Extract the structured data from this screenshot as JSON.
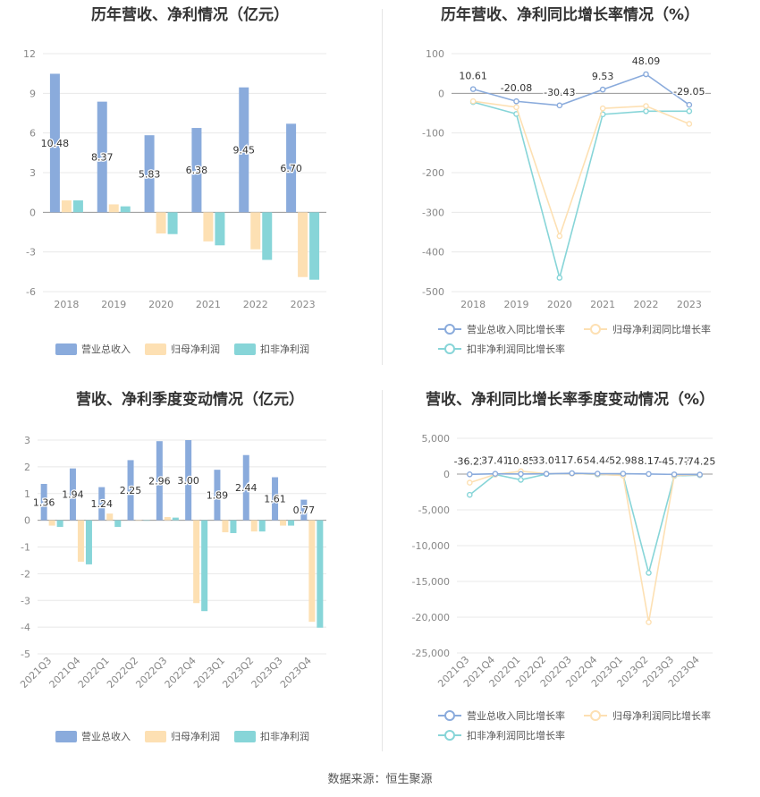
{
  "source": "数据来源：恒生聚源",
  "colors": {
    "blue": "#8aabdc",
    "orange": "#fde0b3",
    "teal": "#87d5d8",
    "grid": "#e8e8e8",
    "axis": "#999"
  },
  "chart_data": [
    {
      "type": "bar",
      "title": "历年营收、净利情况（亿元）",
      "categories": [
        "2018",
        "2019",
        "2020",
        "2021",
        "2022",
        "2023"
      ],
      "ylim": [
        -6,
        12
      ],
      "yticks": [
        12,
        9,
        6,
        3,
        0,
        -3,
        -6
      ],
      "series": [
        {
          "name": "营业总收入",
          "values": [
            10.48,
            8.37,
            5.83,
            6.38,
            9.45,
            6.7
          ],
          "labels": [
            "10.48",
            "8.37",
            "5.83",
            "6.38",
            "9.45",
            "6.70"
          ]
        },
        {
          "name": "归母净利润",
          "values": [
            0.9,
            0.6,
            -1.6,
            -2.2,
            -2.8,
            -4.9
          ]
        },
        {
          "name": "扣非净利润",
          "values": [
            0.9,
            0.45,
            -1.65,
            -2.5,
            -3.6,
            -5.1
          ]
        }
      ],
      "legend": "bottom"
    },
    {
      "type": "line",
      "title": "历年营收、净利同比增长率情况（%）",
      "categories": [
        "2018",
        "2019",
        "2020",
        "2021",
        "2022",
        "2023"
      ],
      "ylim": [
        -500,
        100
      ],
      "yticks": [
        100,
        0,
        -100,
        -200,
        -300,
        -400,
        -500
      ],
      "series": [
        {
          "name": "营业总收入同比增长率",
          "values": [
            10.61,
            -20.08,
            -30.43,
            9.53,
            48.09,
            -29.05
          ],
          "labels": [
            "10.61",
            "-20.08",
            "-30.43",
            "9.53",
            "48.09",
            "-29.05"
          ]
        },
        {
          "name": "归母净利润同比增长率",
          "values": [
            -20,
            -35,
            -360,
            -38,
            -32,
            -77
          ]
        },
        {
          "name": "扣非净利润同比增长率",
          "values": [
            -22,
            -52,
            -465,
            -53,
            -45,
            -45
          ]
        }
      ],
      "legend": "bottom"
    },
    {
      "type": "bar",
      "title": "营收、净利季度变动情况（亿元）",
      "categories": [
        "2021Q3",
        "2021Q4",
        "2022Q1",
        "2022Q2",
        "2022Q3",
        "2022Q4",
        "2023Q1",
        "2023Q2",
        "2023Q3",
        "2023Q4"
      ],
      "ylim": [
        -5,
        3
      ],
      "yticks": [
        3,
        2,
        1,
        0,
        -1,
        -2,
        -3,
        -4,
        -5
      ],
      "series": [
        {
          "name": "营业总收入",
          "values": [
            1.36,
            1.94,
            1.24,
            2.25,
            2.96,
            3.0,
            1.89,
            2.44,
            1.61,
            0.77
          ],
          "labels": [
            "1.36",
            "1.94",
            "1.24",
            "2.25",
            "2.96",
            "3.00",
            "1.89",
            "2.44",
            "1.61",
            "0.77"
          ]
        },
        {
          "name": "归母净利润",
          "values": [
            -0.2,
            -1.55,
            0.25,
            0,
            0.12,
            -3.1,
            -0.45,
            -0.42,
            -0.2,
            -3.8
          ]
        },
        {
          "name": "扣非净利润",
          "values": [
            -0.25,
            -1.65,
            -0.25,
            0,
            0.1,
            -3.4,
            -0.48,
            -0.42,
            -0.2,
            -4.02
          ]
        }
      ],
      "legend": "bottom"
    },
    {
      "type": "line",
      "title": "营收、净利同比增长率季度变动情况（%）",
      "categories": [
        "2021Q3",
        "2021Q4",
        "2022Q1",
        "2022Q2",
        "2022Q3",
        "2022Q4",
        "2023Q1",
        "2023Q2",
        "2023Q3",
        "2023Q4"
      ],
      "ylim": [
        -25000,
        5000
      ],
      "yticks": [
        5000,
        0,
        -5000,
        -10000,
        -15000,
        -20000,
        -25000
      ],
      "ytick_labels": [
        "5,000",
        "0",
        "-5,000",
        "-10,000",
        "-15,000",
        "-20,000",
        "-25,000"
      ],
      "series": [
        {
          "name": "营业总收入同比增长率",
          "values": [
            -36.22,
            37.41,
            10.85,
            33.05,
            117.65,
            54.44,
            52.98,
            8.17,
            -45.77,
            -74.25
          ],
          "labels": [
            "-36.22",
            "37.41",
            "10.85",
            "33.05",
            "117.65",
            "54.44",
            "52.98",
            "8.17",
            "-45.77",
            "-74.25"
          ]
        },
        {
          "name": "归母净利润同比增长率",
          "values": [
            -1200,
            -50,
            400,
            50,
            80,
            -20,
            -200,
            -20700,
            -200,
            -100
          ]
        },
        {
          "name": "扣非净利润同比增长率",
          "values": [
            -2900,
            -60,
            -800,
            0,
            100,
            -60,
            -150,
            -13800,
            -250,
            -150
          ]
        }
      ],
      "legend": "bottom"
    }
  ]
}
